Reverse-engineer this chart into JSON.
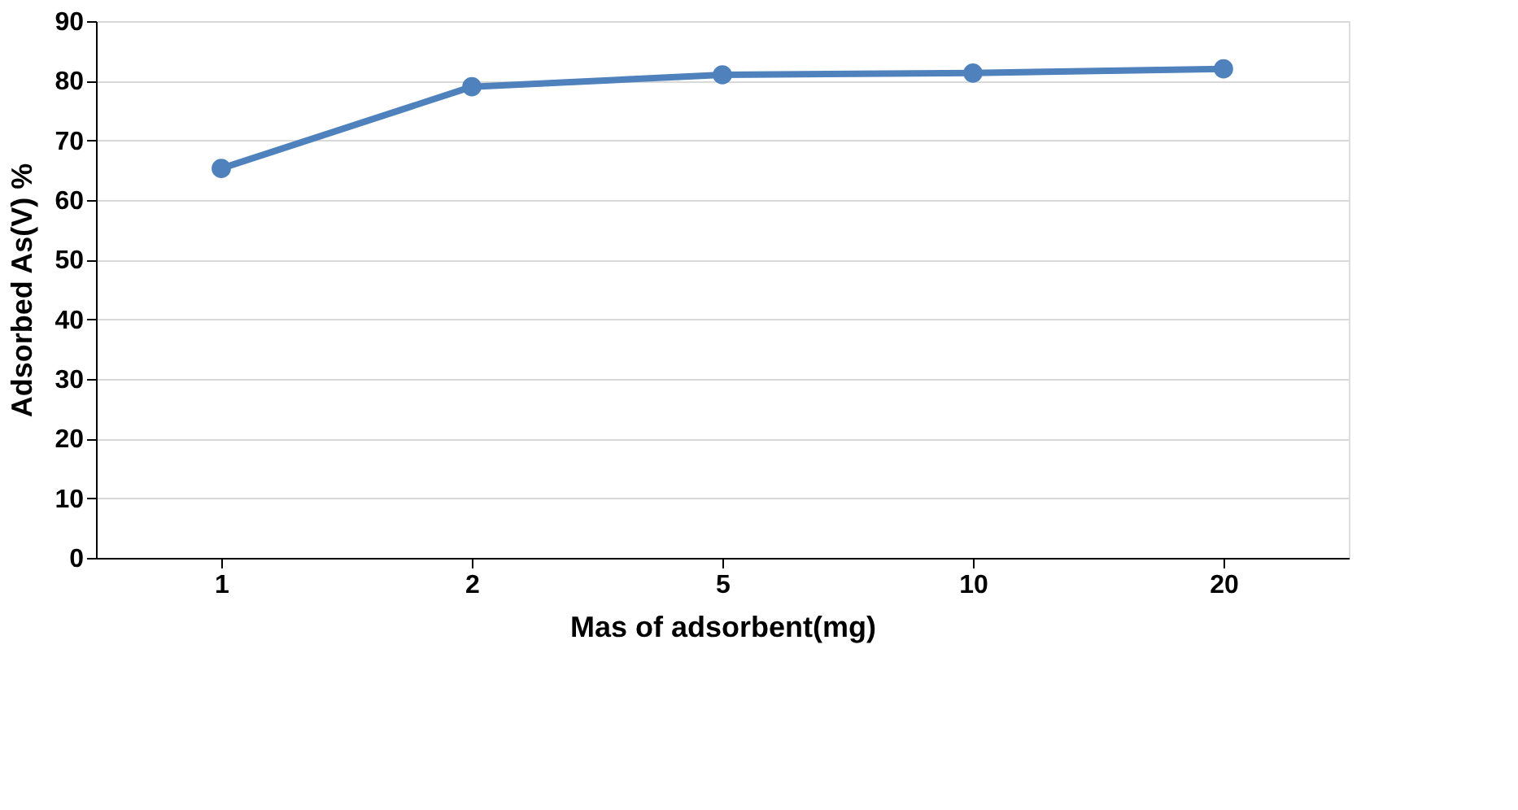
{
  "chart_data": {
    "type": "line",
    "xlabel": "Mas of adsorbent(mg)",
    "ylabel": "Adsorbed As(V) %",
    "categories": [
      "1",
      "2",
      "5",
      "10",
      "20"
    ],
    "series": [
      {
        "color": "#4f81bd",
        "values": [
          65.3,
          79.0,
          81.0,
          81.3,
          82.0
        ]
      }
    ],
    "ylim": [
      0,
      90
    ],
    "yticks": [
      0,
      10,
      20,
      30,
      40,
      50,
      60,
      70,
      80,
      90
    ],
    "grid": "y",
    "marker": "circle",
    "line_style": "solid"
  }
}
